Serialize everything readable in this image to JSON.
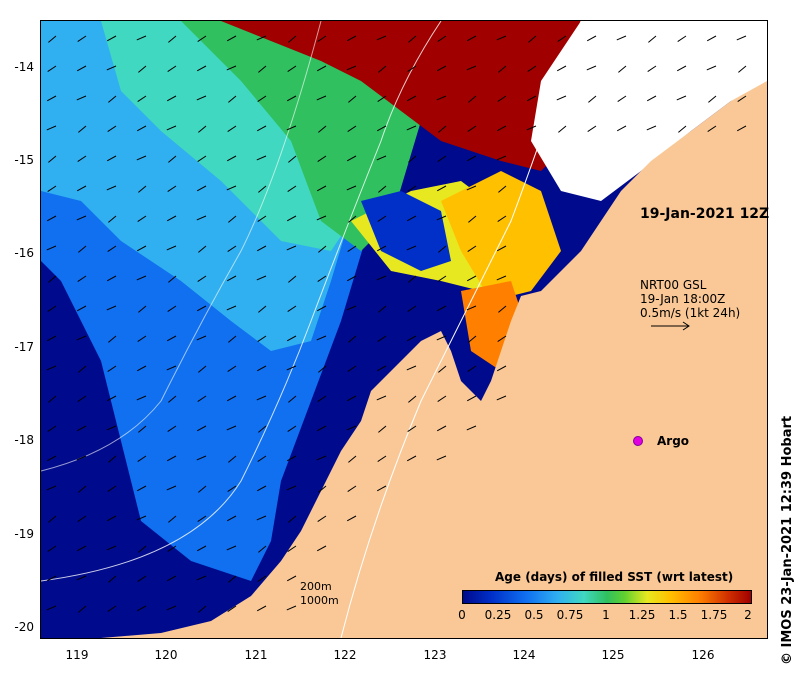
{
  "map": {
    "lon_ticks": [
      "119",
      "120",
      "121",
      "122",
      "123",
      "124",
      "125",
      "126"
    ],
    "lat_ticks": [
      "-14",
      "-15",
      "-16",
      "-17",
      "-18",
      "-19",
      "-20"
    ],
    "timestamp": "19-Jan-2021 12Z",
    "velocity_source": "NRT00 GSL",
    "velocity_time": "19-Jan 18:00Z",
    "velocity_scale": "0.5m/s (1kt 24h)",
    "argo_label": "Argo",
    "depth_200": "200m",
    "depth_1000": "1000m",
    "colorbar_title": "Age (days) of filled SST (wrt latest)",
    "colorbar_ticks": [
      "0",
      "0.25",
      "0.5",
      "0.75",
      "1",
      "1.25",
      "1.5",
      "1.75",
      "2"
    ],
    "credit": "© IMOS 23-Jan-2021 12:39 Hobart",
    "colors": {
      "land": "#fac896",
      "age_0": "#000a8c",
      "age_0_25": "#1070f0",
      "age_0_5": "#30b0f0",
      "age_0_75": "#40d8c0",
      "age_1": "#30c060",
      "age_1_25": "#e8e820",
      "age_1_5": "#ffc000",
      "age_1_75": "#ff8000",
      "age_2": "#a00000"
    }
  }
}
